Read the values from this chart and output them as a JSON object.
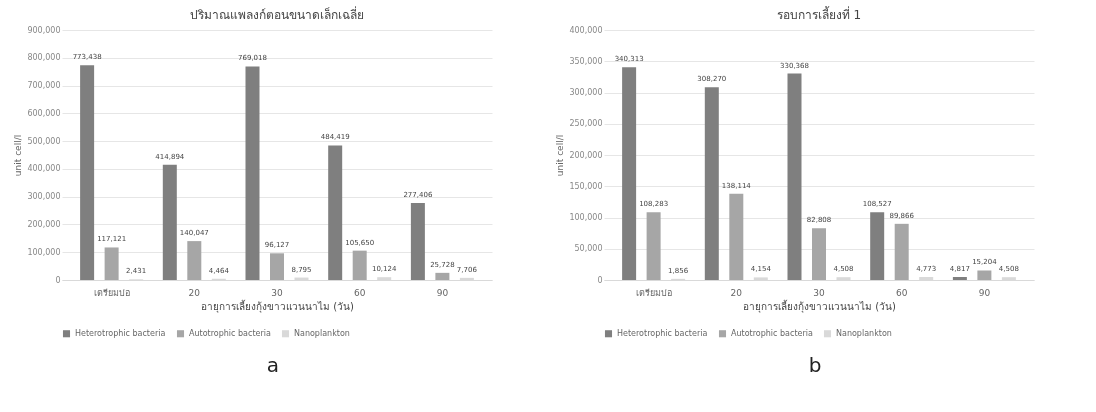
{
  "chart_data": [
    {
      "type": "bar",
      "title": "ปริมาณแพลงก์ตอนขนาดเล็กเฉลี่ย",
      "xlabel": "อายุการเลี้ยงกุ้งขาวแวนนาไม (วัน)",
      "ylabel": "unit cell/l",
      "categories": [
        "เตรียมบ่อ",
        "20",
        "30",
        "60",
        "90"
      ],
      "series": [
        {
          "name": "Heterotrophic bacteria",
          "color": "#7f7f7f",
          "values": [
            773438,
            414894,
            769018,
            484419,
            277406
          ],
          "value_labels": [
            "773,438",
            "414,894",
            "769,018",
            "484,419",
            "277,406"
          ]
        },
        {
          "name": "Autotrophic bacteria",
          "color": "#a6a6a6",
          "values": [
            117121,
            140047,
            96127,
            105650,
            25728
          ],
          "value_labels": [
            "117,121",
            "140,047",
            "96,127",
            "105,650",
            "25,728"
          ]
        },
        {
          "name": "Nanoplankton",
          "color": "#d9d9d9",
          "values": [
            2431,
            4464,
            8795,
            10124,
            7706
          ],
          "value_labels": [
            "2,431",
            "4,464",
            "8,795",
            "10,124",
            "7,706"
          ]
        }
      ],
      "ylim": [
        0,
        900000
      ],
      "yticks": [
        0,
        {
          "value": 100000,
          "label": "100,000"
        },
        {
          "value": 200000,
          "label": "200,000"
        },
        {
          "value": 300000,
          "label": "300,000"
        },
        {
          "value": 400000,
          "label": "400,000"
        },
        {
          "value": 500000,
          "label": "500,000"
        },
        {
          "value": 600000,
          "label": "600,000"
        },
        {
          "value": 700000,
          "label": "700,000"
        },
        {
          "value": 800000,
          "label": "800,000"
        },
        {
          "value": 900000,
          "label": "900,000"
        }
      ],
      "grid": "y",
      "legend": "bottom",
      "annotations": [
        "a"
      ]
    },
    {
      "type": "bar",
      "title": "รอบการเลี้ยงที่ 1",
      "xlabel": "อายุการเลี้ยงกุ้งขาวแวนนาไม (วัน)",
      "ylabel": "unit cell/l",
      "categories": [
        "เตรียมบ่อ",
        "20",
        "30",
        "60",
        "90"
      ],
      "series": [
        {
          "name": "Heterotrophic bacteria",
          "color": "#7f7f7f",
          "values": [
            340313,
            308270,
            330368,
            108527,
            4817
          ],
          "value_labels": [
            "340,313",
            "308,270",
            "330,368",
            "108,527",
            "4,817"
          ]
        },
        {
          "name": "Autotrophic bacteria",
          "color": "#a6a6a6",
          "values": [
            108283,
            138114,
            82808,
            89866,
            15204
          ],
          "value_labels": [
            "108,283",
            "138,114",
            "82,808",
            "89,866",
            "15,204"
          ]
        },
        {
          "name": "Nanoplankton",
          "color": "#d9d9d9",
          "values": [
            1856,
            4154,
            4508,
            4773,
            4508
          ],
          "value_labels": [
            "1,856",
            "4,154",
            "4,508",
            "4,773",
            "4,508"
          ]
        }
      ],
      "ylim": [
        0,
        400000
      ],
      "yticks": [
        0,
        {
          "value": 50000,
          "label": "50,000"
        },
        {
          "value": 100000,
          "label": "100,000"
        },
        {
          "value": 150000,
          "label": "150,000"
        },
        {
          "value": 200000,
          "label": "200,000"
        },
        {
          "value": 250000,
          "label": "250,000"
        },
        {
          "value": 300000,
          "label": "300,000"
        },
        {
          "value": 350000,
          "label": "350,000"
        },
        {
          "value": 400000,
          "label": "400,000"
        }
      ],
      "grid": "y",
      "legend": "bottom",
      "annotations": [
        "b"
      ]
    }
  ]
}
